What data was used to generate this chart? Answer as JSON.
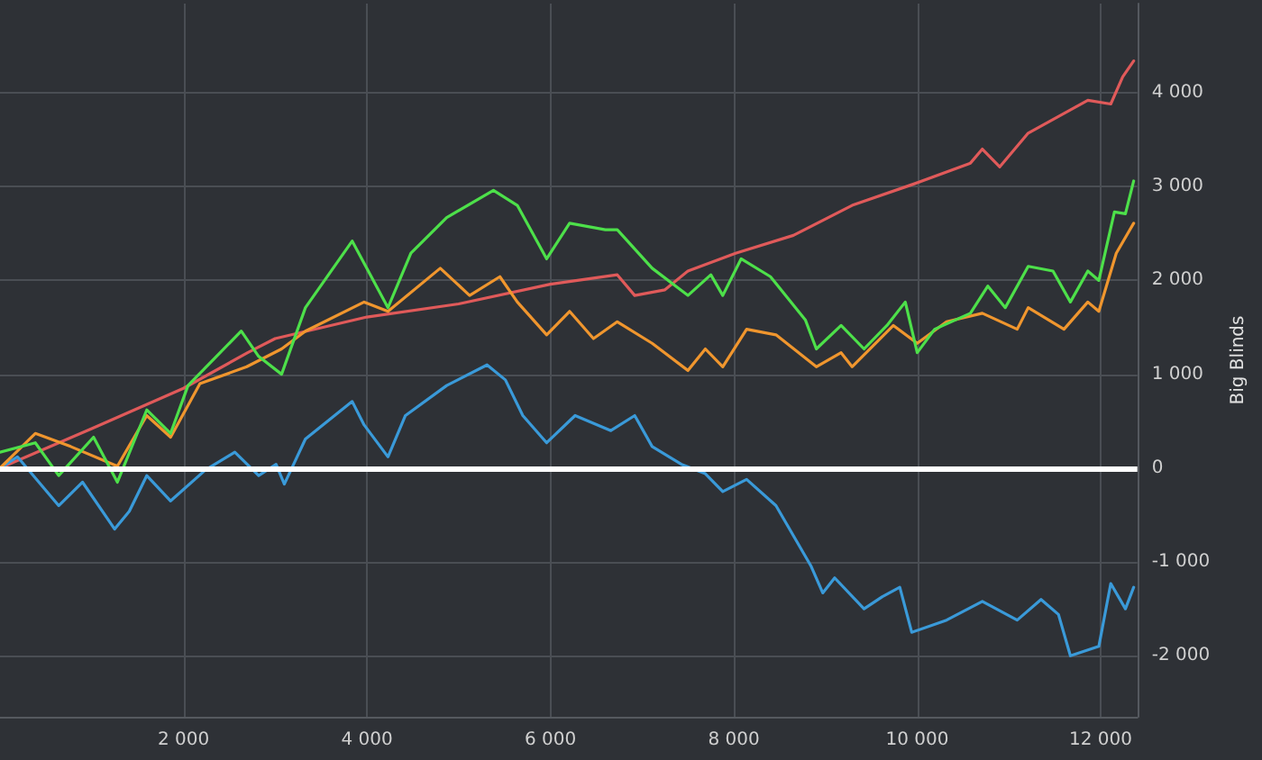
{
  "chart_data": {
    "type": "line",
    "ylabel": "Big Blinds",
    "xlim": [
      0,
      12400
    ],
    "ylim": [
      -2650,
      4950
    ],
    "xticks": [
      {
        "value": 2000,
        "label": "2 000"
      },
      {
        "value": 4000,
        "label": "4 000"
      },
      {
        "value": 6000,
        "label": "6 000"
      },
      {
        "value": 8000,
        "label": "8 000"
      },
      {
        "value": 10000,
        "label": "10 000"
      },
      {
        "value": 12000,
        "label": "12 000"
      }
    ],
    "yticks": [
      {
        "value": -2000,
        "label": "-2 000"
      },
      {
        "value": -1000,
        "label": "-1 000"
      },
      0,
      {
        "value": 1000,
        "label": "1 000"
      },
      {
        "value": 2000,
        "label": "2 000"
      },
      {
        "value": 3000,
        "label": "3 000"
      },
      {
        "value": 4000,
        "label": "4 000"
      }
    ],
    "grid": true,
    "marker": "none",
    "line_style": "solid",
    "ref_lines": [
      {
        "axis": "y",
        "value": 0,
        "color": "#ffffff"
      }
    ],
    "series": [
      {
        "color": "#e05a5a",
        "x": [
          0,
          1000,
          2000,
          2700,
          3000,
          4000,
          5000,
          6000,
          6730,
          6920,
          7250,
          7500,
          8020,
          8650,
          9290,
          9940,
          10580,
          10710,
          10900,
          11210,
          11860,
          12110,
          12240,
          12360
        ],
        "values": [
          0,
          420,
          850,
          1230,
          1380,
          1610,
          1750,
          1960,
          2060,
          1840,
          1900,
          2100,
          2290,
          2480,
          2800,
          3020,
          3250,
          3400,
          3210,
          3570,
          3920,
          3880,
          4170,
          4340
        ]
      },
      {
        "color": "#3a9ad9",
        "x": [
          0,
          190,
          640,
          900,
          1250,
          1410,
          1600,
          1860,
          2240,
          2560,
          2820,
          3010,
          3100,
          3330,
          3840,
          3970,
          4230,
          4420,
          4870,
          5310,
          5510,
          5700,
          5960,
          6270,
          6660,
          6920,
          7110,
          7430,
          7690,
          7880,
          8140,
          8460,
          8840,
          8970,
          9100,
          9420,
          9620,
          9810,
          9940,
          10320,
          10710,
          11090,
          11350,
          11540,
          11670,
          11980,
          12110,
          12270,
          12360
        ],
        "values": [
          0,
          120,
          -400,
          -150,
          -650,
          -460,
          -80,
          -350,
          -20,
          170,
          -80,
          40,
          -170,
          310,
          710,
          460,
          120,
          560,
          880,
          1100,
          940,
          560,
          270,
          560,
          400,
          560,
          230,
          40,
          -60,
          -250,
          -120,
          -400,
          -1040,
          -1330,
          -1170,
          -1500,
          -1370,
          -1270,
          -1750,
          -1620,
          -1420,
          -1620,
          -1400,
          -1560,
          -2000,
          -1900,
          -1230,
          -1500,
          -1270
        ]
      },
      {
        "color": "#f0962e",
        "x": [
          0,
          385,
          770,
          1280,
          1600,
          1860,
          2180,
          2690,
          3070,
          3330,
          3970,
          4230,
          4800,
          5120,
          5450,
          5640,
          5960,
          6210,
          6470,
          6730,
          7110,
          7500,
          7690,
          7880,
          8140,
          8460,
          8900,
          9170,
          9290,
          9740,
          10000,
          10320,
          10710,
          11090,
          11210,
          11600,
          11860,
          11980,
          12170,
          12360
        ],
        "values": [
          0,
          370,
          230,
          20,
          560,
          330,
          900,
          1080,
          1270,
          1460,
          1770,
          1670,
          2130,
          1840,
          2040,
          1770,
          1420,
          1670,
          1380,
          1560,
          1330,
          1040,
          1270,
          1080,
          1480,
          1420,
          1080,
          1230,
          1080,
          1520,
          1330,
          1560,
          1650,
          1480,
          1710,
          1480,
          1770,
          1670,
          2290,
          2610
        ]
      },
      {
        "color": "#4de04a",
        "x": [
          0,
          385,
          640,
          1020,
          1280,
          1600,
          1860,
          2050,
          2630,
          2820,
          3070,
          3330,
          3840,
          4230,
          4480,
          4870,
          5380,
          5640,
          5960,
          6210,
          6600,
          6730,
          7110,
          7500,
          7750,
          7880,
          8080,
          8400,
          8780,
          8900,
          9170,
          9420,
          9670,
          9870,
          10000,
          10190,
          10580,
          10770,
          10960,
          11210,
          11480,
          11670,
          11860,
          11980,
          12150,
          12270,
          12360
        ],
        "values": [
          170,
          270,
          -80,
          330,
          -150,
          620,
          370,
          880,
          1460,
          1190,
          1000,
          1710,
          2420,
          1710,
          2290,
          2670,
          2960,
          2800,
          2230,
          2610,
          2540,
          2540,
          2130,
          1840,
          2060,
          1840,
          2230,
          2040,
          1580,
          1270,
          1520,
          1270,
          1520,
          1770,
          1230,
          1480,
          1650,
          1940,
          1710,
          2150,
          2100,
          1770,
          2100,
          2000,
          2730,
          2710,
          3060
        ]
      }
    ]
  }
}
